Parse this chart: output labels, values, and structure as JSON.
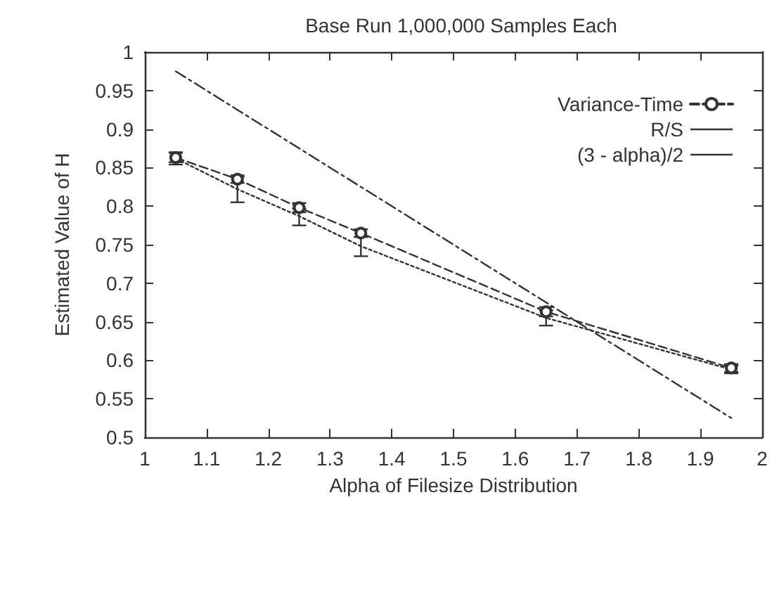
{
  "chart_data": {
    "type": "line",
    "title": "Base Run 1,000,000 Samples Each",
    "xlabel": "Alpha of Filesize Distribution",
    "ylabel": "Estimated Value of H",
    "x": [
      1.05,
      1.15,
      1.25,
      1.35,
      1.65,
      1.95
    ],
    "series": [
      {
        "name": "Variance-Time",
        "color": "#333333",
        "values": [
          0.863,
          0.835,
          0.798,
          0.765,
          0.663,
          0.59
        ],
        "errors": [
          0.006,
          0.005,
          0.006,
          0.005,
          0.006,
          0.005
        ],
        "marker": "circle",
        "line_style": "dashed"
      },
      {
        "name": "R/S",
        "color": "#333333",
        "values": [
          0.862,
          0.822,
          0.787,
          0.748,
          0.655,
          0.588
        ],
        "errors": [
          0.008,
          [
            0.805,
            0.838
          ],
          [
            0.775,
            0.797
          ],
          [
            0.735,
            0.76
          ],
          [
            0.645,
            0.665
          ],
          0.005
        ],
        "marker": "none",
        "line_style": "dotted"
      },
      {
        "name": "(3 - alpha)/2",
        "color": "#333333",
        "x": [
          1.05,
          1.95
        ],
        "values": [
          0.975,
          0.525
        ],
        "marker": "none",
        "line_style": "dashed"
      }
    ],
    "xlim": [
      1,
      2
    ],
    "xticks": [
      1,
      1.1,
      1.2,
      1.3,
      1.4,
      1.5,
      1.6,
      1.7,
      1.8,
      1.9,
      2
    ],
    "ylim": [
      0.5,
      1
    ],
    "yticks": [
      0.5,
      0.55,
      0.6,
      0.65,
      0.7,
      0.75,
      0.8,
      0.85,
      0.9,
      0.95,
      1
    ],
    "grid": false,
    "legend": "top right"
  }
}
